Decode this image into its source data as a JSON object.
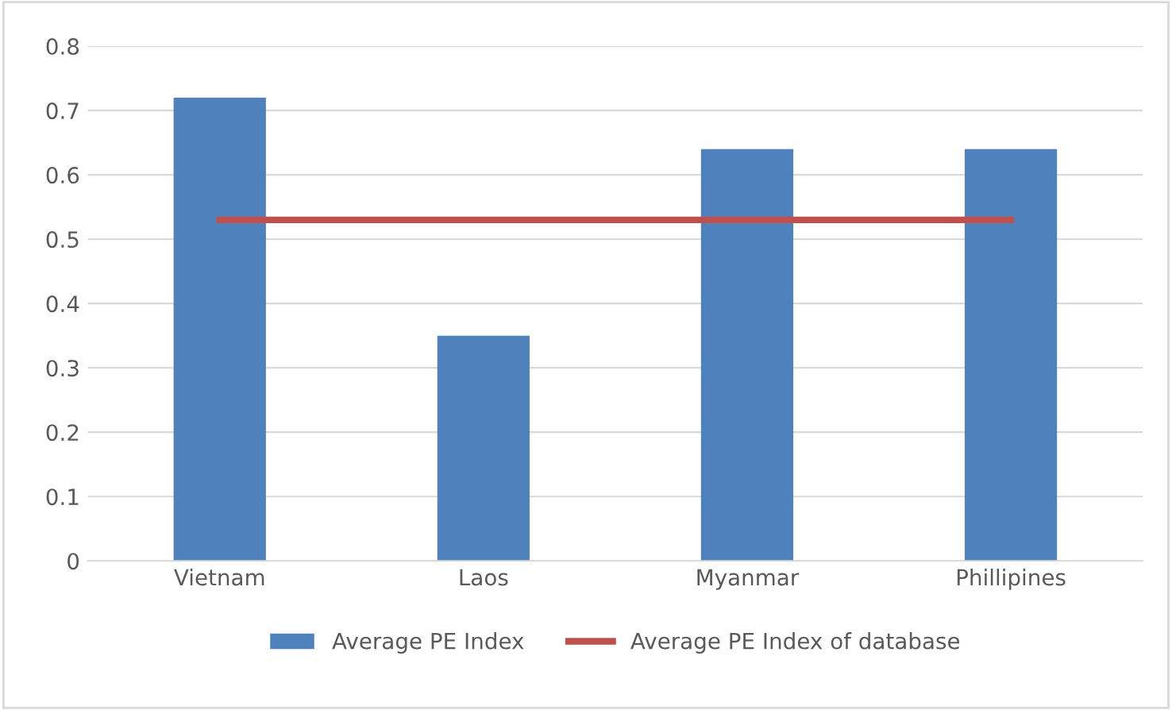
{
  "chart_data": {
    "type": "bar",
    "categories": [
      "Vietnam",
      "Laos",
      "Myanmar",
      "Phillipines"
    ],
    "series": [
      {
        "name": "Average PE Index",
        "color": "#4f81bd",
        "values": [
          0.72,
          0.35,
          0.64,
          0.64
        ]
      },
      {
        "name": "Average PE Index of database",
        "type": "line",
        "color": "#c0504d",
        "values": [
          0.53,
          0.53,
          0.53,
          0.53
        ]
      }
    ],
    "ylim": [
      0,
      0.8
    ],
    "yticks": [
      0,
      0.1,
      0.2,
      0.3,
      0.4,
      0.5,
      0.6,
      0.7,
      0.8
    ],
    "grid": "y",
    "legend": "bottom",
    "marker": "none",
    "line_style": "solid"
  }
}
